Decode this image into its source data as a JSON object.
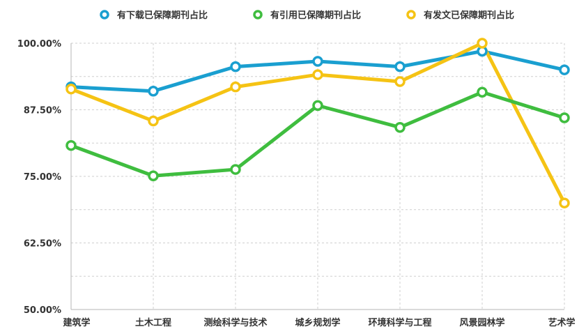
{
  "chart_data": {
    "type": "line",
    "categories": [
      "建筑学",
      "土木工程",
      "测绘科学与技术",
      "城乡规划学",
      "环境科学与工程",
      "风景园林学",
      "艺术学"
    ],
    "series": [
      {
        "name": "有下载已保障期刊占比",
        "color": "#1a9fd0",
        "values": [
          91.8,
          91.0,
          95.6,
          96.6,
          95.6,
          98.5,
          95.0
        ]
      },
      {
        "name": "有引用已保障期刊占比",
        "color": "#3fbd3f",
        "values": [
          80.8,
          75.1,
          76.3,
          88.3,
          84.2,
          90.8,
          86.0
        ]
      },
      {
        "name": "有发文已保障期刊占比",
        "color": "#f5c314",
        "values": [
          91.4,
          85.4,
          91.8,
          94.1,
          92.8,
          100.0,
          70.0
        ]
      }
    ],
    "ylim": [
      50,
      100
    ],
    "yticks": [
      50,
      62.5,
      75,
      87.5,
      100
    ],
    "ytick_labels": [
      "50.00%",
      "62.50%",
      "75.00%",
      "87.50%",
      "100.00%"
    ],
    "grid": true,
    "legend_position": "top-center"
  }
}
